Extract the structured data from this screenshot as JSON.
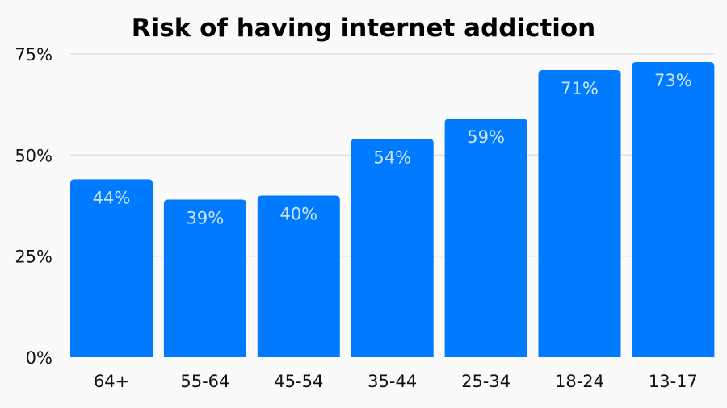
{
  "chart_data": {
    "type": "bar",
    "title": "Risk of having internet addiction",
    "xlabel": "",
    "ylabel": "",
    "categories": [
      "64+",
      "55-64",
      "45-54",
      "35-44",
      "25-34",
      "18-24",
      "13-17"
    ],
    "values": [
      44,
      39,
      40,
      54,
      59,
      71,
      73
    ],
    "data_labels": [
      "44%",
      "39%",
      "40%",
      "54%",
      "59%",
      "71%",
      "73%"
    ],
    "ylim": [
      0,
      75
    ],
    "yticks": [
      0,
      25,
      50,
      75
    ],
    "ytick_labels": [
      "0%",
      "25%",
      "50%",
      "75%"
    ],
    "grid": true,
    "colors": {
      "bar": "#007bff",
      "label": "#cfe3ff",
      "grid": "#dddddd",
      "background": "#fafafa"
    }
  }
}
